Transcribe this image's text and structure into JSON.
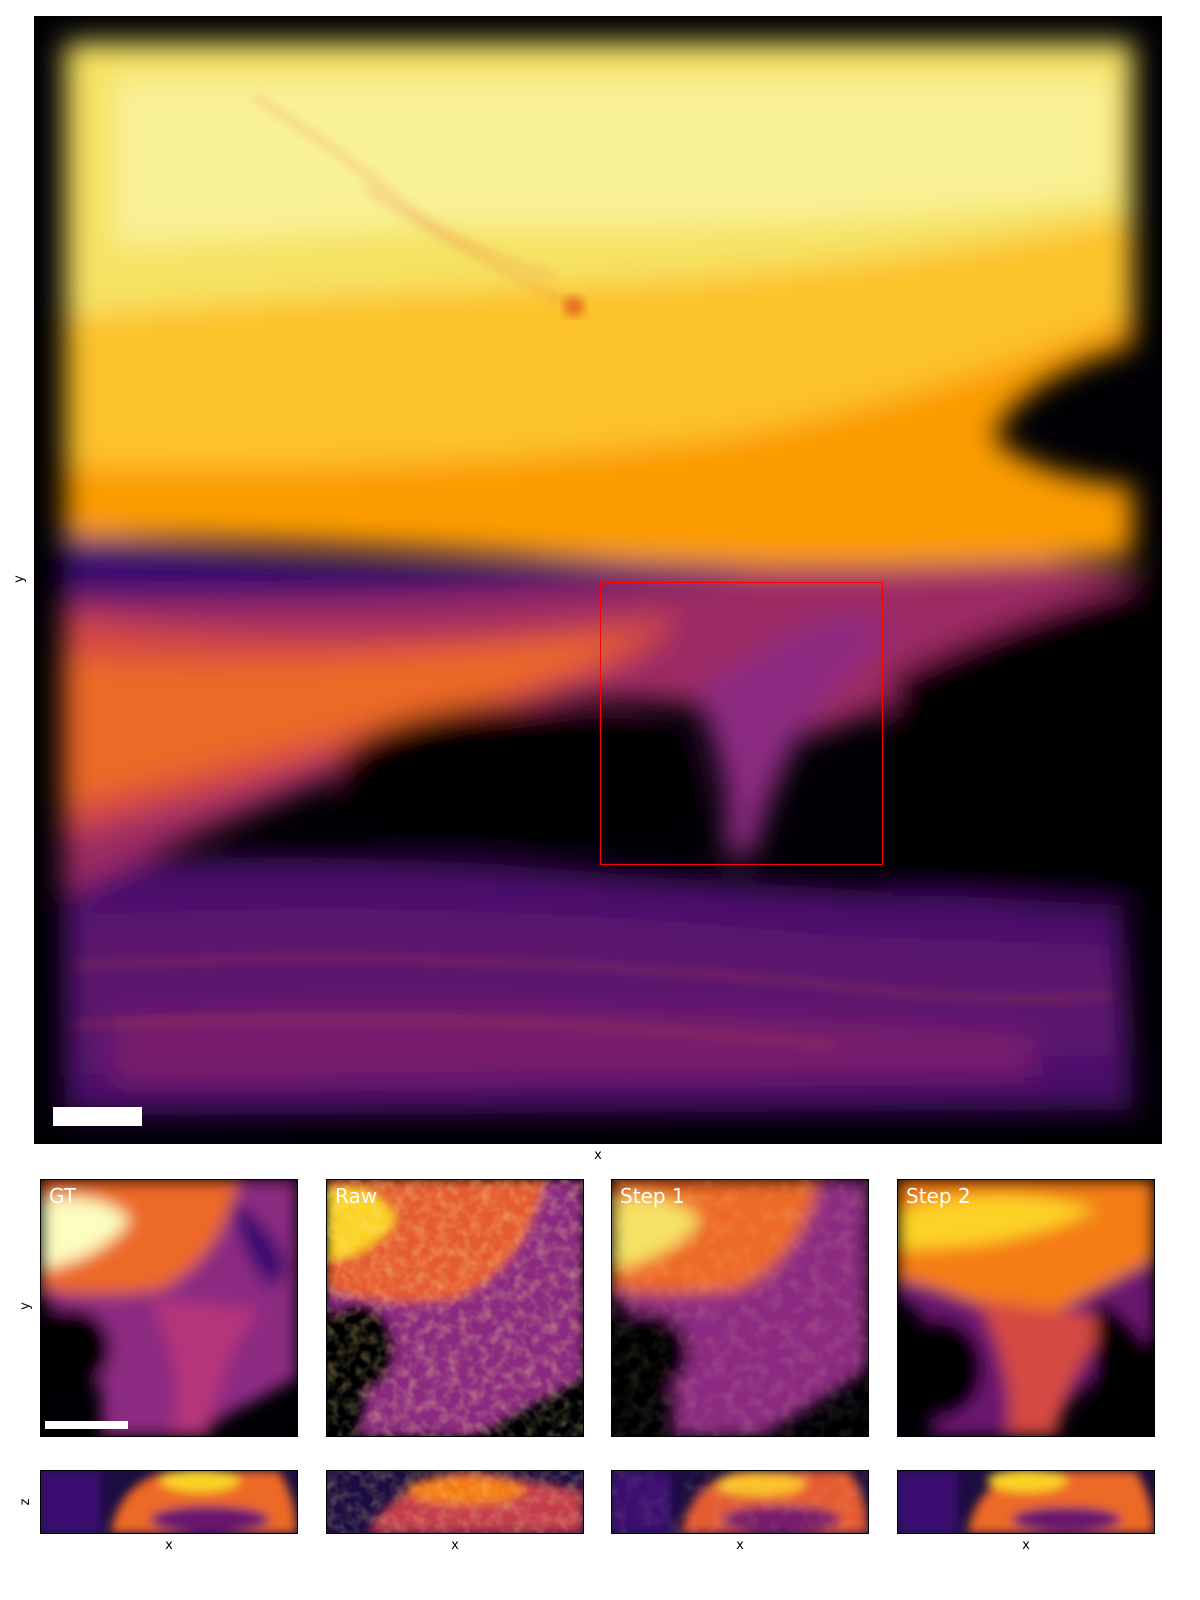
{
  "main": {
    "x_label": "x",
    "y_label": "y"
  },
  "crops": {
    "y_label": "y",
    "z_label": "z",
    "x_label": "x",
    "panels": [
      {
        "title": "GT"
      },
      {
        "title": "Raw"
      },
      {
        "title": "Step 1"
      },
      {
        "title": "Step 2"
      }
    ]
  },
  "colormap": "inferno",
  "roi_color": "#ff0000"
}
